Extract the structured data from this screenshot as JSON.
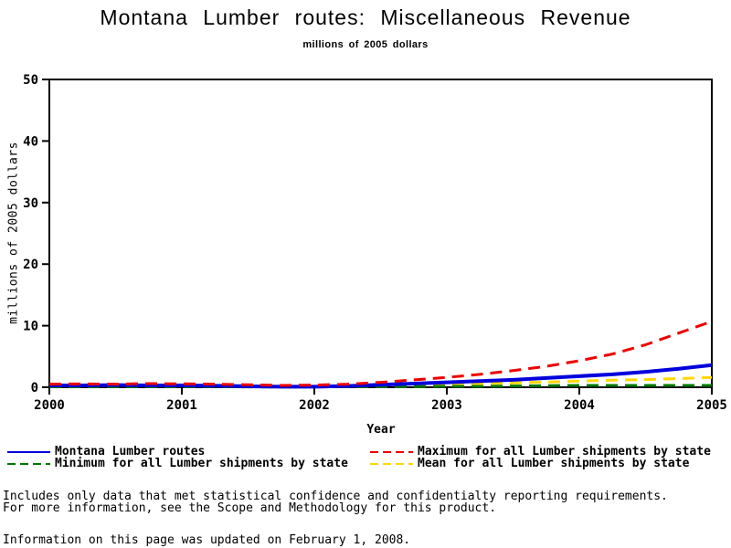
{
  "title": "Montana Lumber routes: Miscellaneous Revenue",
  "subtitle": "millions of 2005 dollars",
  "chart_data": {
    "type": "line",
    "title": "Montana Lumber routes: Miscellaneous Revenue",
    "subtitle": "millions of 2005 dollars",
    "xlabel": "Year",
    "ylabel": "millions of 2005 dollars",
    "xlim": [
      2000,
      2005
    ],
    "ylim": [
      0,
      50
    ],
    "xticks": [
      2000,
      2001,
      2002,
      2003,
      2004,
      2005
    ],
    "yticks": [
      0,
      10,
      20,
      30,
      40,
      50
    ],
    "grid": false,
    "legend_position": "bottom",
    "frame_color": "#000000",
    "x": [
      2000,
      2000.25,
      2000.5,
      2000.75,
      2001,
      2001.25,
      2001.5,
      2001.75,
      2002,
      2002.25,
      2002.5,
      2002.75,
      2003,
      2003.25,
      2003.5,
      2003.75,
      2004,
      2004.25,
      2004.5,
      2004.75,
      2005
    ],
    "series": [
      {
        "name": "Montana Lumber routes",
        "color": "#0000dd",
        "style": "solid",
        "width": 4,
        "values": [
          0.3,
          0.3,
          0.35,
          0.3,
          0.3,
          0.25,
          0.15,
          0.1,
          0.1,
          0.2,
          0.4,
          0.6,
          0.8,
          1.0,
          1.2,
          1.5,
          1.8,
          2.1,
          2.5,
          3.0,
          3.6
        ]
      },
      {
        "name": "Maximum for all Lumber shipments by state",
        "color": "#ee0000",
        "style": "dashed",
        "width": 3,
        "values": [
          0.5,
          0.55,
          0.5,
          0.6,
          0.55,
          0.5,
          0.4,
          0.3,
          0.35,
          0.5,
          0.8,
          1.2,
          1.6,
          2.1,
          2.7,
          3.4,
          4.3,
          5.4,
          6.9,
          8.8,
          10.7
        ]
      },
      {
        "name": "Minimum for all Lumber shipments by state",
        "color": "#007700",
        "style": "dashed",
        "width": 3,
        "values": [
          0.1,
          0.1,
          0.1,
          0.1,
          0.1,
          0.1,
          0.05,
          0.05,
          0.05,
          0.1,
          0.1,
          0.1,
          0.15,
          0.15,
          0.2,
          0.25,
          0.3,
          0.3,
          0.3,
          0.3,
          0.3
        ]
      },
      {
        "name": "Mean for all Lumber shipments by state",
        "color": "#ffd700",
        "style": "dashed",
        "width": 3,
        "values": [
          0.2,
          0.2,
          0.25,
          0.2,
          0.2,
          0.2,
          0.1,
          0.1,
          0.1,
          0.2,
          0.3,
          0.4,
          0.5,
          0.6,
          0.7,
          0.85,
          1.0,
          1.15,
          1.25,
          1.4,
          1.6
        ]
      }
    ],
    "draw_order": [
      3,
      2,
      0,
      1
    ]
  },
  "footer": {
    "line1": "Includes only data that met statistical confidence and confidentialty reporting requirements.",
    "line2": "For more information, see the Scope and Methodology for this product.",
    "line3": "Information on this page was updated on February 1, 2008."
  }
}
